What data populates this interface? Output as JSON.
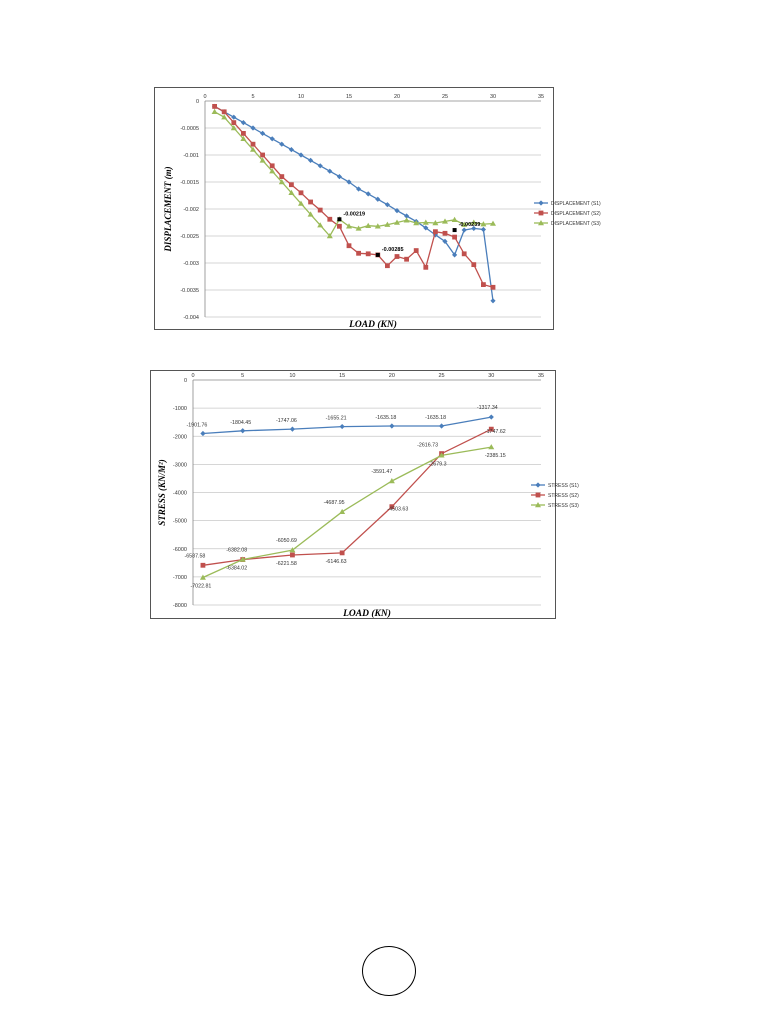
{
  "chart_data": [
    {
      "type": "line",
      "title": "",
      "xlabel": "LOAD (KN)",
      "ylabel": "DISPLACEMENT (m)",
      "xlim": [
        0,
        35
      ],
      "ylim": [
        -0.004,
        0
      ],
      "xticks": [
        "0",
        "5",
        "10",
        "15",
        "20",
        "25",
        "30",
        "35"
      ],
      "yticks": [
        "0",
        "-0.0005",
        "-0.001",
        "-0.0015",
        "-0.002",
        "-0.0025",
        "-0.003",
        "-0.0035",
        "-0.004"
      ],
      "grid": true,
      "legend_position": "right",
      "series": [
        {
          "name": "DISPLACEMENT (S1)",
          "color": "#4a7ebb",
          "marker": "diamond",
          "x": [
            1,
            2,
            3,
            4,
            5,
            6,
            7,
            8,
            9,
            10,
            11,
            12,
            13,
            14,
            15,
            16,
            17,
            18,
            19,
            20,
            21,
            22,
            23,
            24,
            25,
            26,
            27,
            28,
            29,
            30
          ],
          "y": [
            -0.0001,
            -0.0002,
            -0.0003,
            -0.0004,
            -0.0005,
            -0.0006,
            -0.0007,
            -0.0008,
            -0.0009,
            -0.001,
            -0.0011,
            -0.0012,
            -0.0013,
            -0.0014,
            -0.0015,
            -0.00163,
            -0.00172,
            -0.00182,
            -0.00192,
            -0.00203,
            -0.00213,
            -0.00223,
            -0.00235,
            -0.00248,
            -0.0026,
            -0.00285,
            -0.00239,
            -0.00236,
            -0.00238,
            -0.0037
          ]
        },
        {
          "name": "DISPLACEMENT (S2)",
          "color": "#c0504d",
          "marker": "square",
          "x": [
            1,
            2,
            3,
            4,
            5,
            6,
            7,
            8,
            9,
            10,
            11,
            12,
            13,
            14,
            15,
            16,
            17,
            18,
            19,
            20,
            21,
            22,
            23,
            24,
            25,
            26,
            27,
            28,
            29,
            30
          ],
          "y": [
            -0.0001,
            -0.0002,
            -0.0004,
            -0.0006,
            -0.0008,
            -0.001,
            -0.0012,
            -0.0014,
            -0.00155,
            -0.0017,
            -0.00187,
            -0.00202,
            -0.00219,
            -0.00232,
            -0.00268,
            -0.00282,
            -0.00283,
            -0.00285,
            -0.00305,
            -0.00288,
            -0.00293,
            -0.00277,
            -0.00308,
            -0.00242,
            -0.00245,
            -0.00252,
            -0.00283,
            -0.00303,
            -0.0034,
            -0.00345
          ]
        },
        {
          "name": "DISPLACEMENT (S3)",
          "color": "#9bbb59",
          "marker": "triangle",
          "x": [
            1,
            2,
            3,
            4,
            5,
            6,
            7,
            8,
            9,
            10,
            11,
            12,
            13,
            14,
            15,
            16,
            17,
            18,
            19,
            20,
            21,
            22,
            23,
            24,
            25,
            26,
            27,
            28,
            29,
            30
          ],
          "y": [
            -0.0002,
            -0.0003,
            -0.0005,
            -0.0007,
            -0.0009,
            -0.0011,
            -0.0013,
            -0.0015,
            -0.0017,
            -0.0019,
            -0.0021,
            -0.0023,
            -0.0025,
            -0.00219,
            -0.00232,
            -0.00236,
            -0.00231,
            -0.00232,
            -0.00229,
            -0.00225,
            -0.00221,
            -0.00226,
            -0.00225,
            -0.00226,
            -0.00223,
            -0.0022,
            -0.00229,
            -0.00225,
            -0.00228,
            -0.00227
          ]
        }
      ],
      "annotations": [
        {
          "text": "-0.00219",
          "x": 14,
          "y": -0.00219
        },
        {
          "text": "-0.00285",
          "x": 18,
          "y": -0.00285
        },
        {
          "text": "-0.00239",
          "x": 26,
          "y": -0.00239
        }
      ]
    },
    {
      "type": "line",
      "title": "",
      "xlabel": "LOAD (KN)",
      "ylabel": "STRESS (KN/M²)",
      "xlim": [
        0,
        35
      ],
      "ylim": [
        -8000,
        0
      ],
      "xticks": [
        "0",
        "5",
        "10",
        "15",
        "20",
        "25",
        "30",
        "35"
      ],
      "yticks": [
        "0",
        "-1000",
        "-2000",
        "-3000",
        "-4000",
        "-5000",
        "-6000",
        "-7000",
        "-8000"
      ],
      "grid": true,
      "legend_position": "right",
      "series": [
        {
          "name": "STRESS (S1)",
          "color": "#4a7ebb",
          "marker": "diamond",
          "x": [
            1,
            5,
            10,
            15,
            20,
            25,
            30
          ],
          "y": [
            -1901.76,
            -1804.45,
            -1747.06,
            -1655.21,
            -1635.18,
            -1635.18,
            -1317.34
          ],
          "labels": [
            "-1901.76",
            "-1804.45",
            "-1747.06",
            "-1655.21",
            "-1635.18",
            "-1635.18",
            "-1317.34"
          ]
        },
        {
          "name": "STRESS (S2)",
          "color": "#c0504d",
          "marker": "square",
          "x": [
            1,
            5,
            10,
            15,
            20,
            25,
            30
          ],
          "y": [
            -6587.58,
            -6384.02,
            -6221.58,
            -6146.63,
            -4503.63,
            -2616.73,
            -1747.62
          ],
          "labels": [
            "-6587.58",
            "-6384.02",
            "-6221.58",
            "-6146.63",
            "-4503.63",
            "-2616.73",
            "-1747.62"
          ]
        },
        {
          "name": "STRESS (S3)",
          "color": "#9bbb59",
          "marker": "triangle",
          "x": [
            1,
            5,
            10,
            15,
            20,
            25,
            30
          ],
          "y": [
            -7022.81,
            -6382.08,
            -6050.69,
            -4687.95,
            -3591.47,
            -2679.3,
            -2385.15
          ],
          "labels": [
            "-7022.81",
            "-6382.08",
            "-6050.69",
            "-4687.95",
            "-3591.47",
            "-2679.3",
            "-2385.15"
          ]
        }
      ]
    }
  ]
}
